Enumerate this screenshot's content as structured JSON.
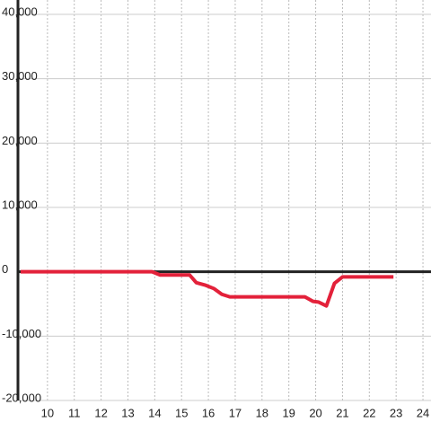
{
  "chart_data": {
    "type": "line",
    "xlim": [
      8.9,
      24.3
    ],
    "xticks": [
      10,
      11,
      12,
      13,
      14,
      15,
      16,
      17,
      18,
      19,
      20,
      21,
      22,
      23,
      24
    ],
    "ylim": [
      -20000,
      40000
    ],
    "yticks": [
      {
        "value": -20000,
        "label": "-20,000"
      },
      {
        "value": -10000,
        "label": "-10,000"
      },
      0,
      {
        "value": 10000,
        "label": "10,000"
      },
      {
        "value": 20000,
        "label": "20,000"
      },
      {
        "value": 30000,
        "label": "30,000"
      },
      {
        "value": 40000,
        "label": "40,000"
      }
    ],
    "grid": true,
    "series": [
      {
        "color": "#e3213a",
        "x": [
          9,
          13.9,
          14.2,
          15.3,
          15.55,
          15.9,
          16.2,
          16.5,
          16.8,
          19.6,
          19.9,
          20.1,
          20.4,
          20.7,
          21,
          22.9
        ],
        "values": [
          0,
          0,
          -500,
          -500,
          -1700,
          -2100,
          -2600,
          -3500,
          -3900,
          -3900,
          -4600,
          -4700,
          -5300,
          -1800,
          -800,
          -800
        ]
      }
    ]
  }
}
